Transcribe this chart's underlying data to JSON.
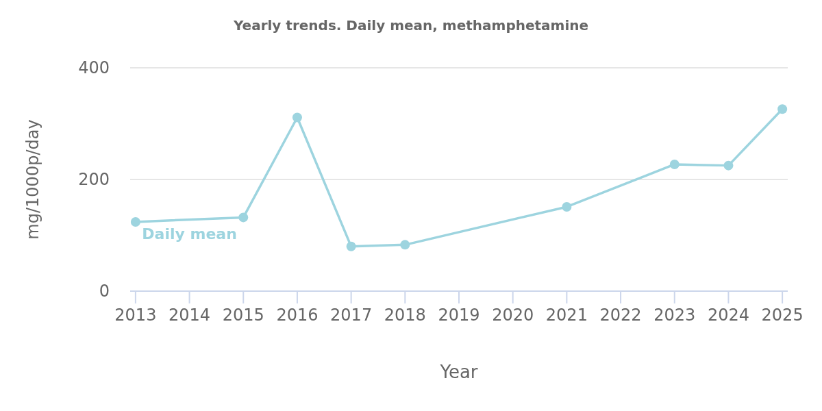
{
  "chart_data": {
    "type": "line",
    "title": "Yearly trends. Daily mean, methamphetamine",
    "xlabel": "Year",
    "ylabel": "mg/1000p/day",
    "x": [
      2013,
      2015,
      2016,
      2017,
      2018,
      2021,
      2023,
      2024,
      2025
    ],
    "series": [
      {
        "name": "Daily mean",
        "color": "#9dd4df",
        "values": [
          124,
          132,
          311,
          80,
          83,
          151,
          227,
          225,
          326
        ]
      }
    ],
    "xlim": [
      2012.9,
      2025.1
    ],
    "xticks": [
      2013,
      2014,
      2015,
      2016,
      2017,
      2018,
      2019,
      2020,
      2021,
      2022,
      2023,
      2024,
      2025
    ],
    "ylim": [
      0,
      400
    ],
    "yticks": [
      0,
      200,
      400
    ],
    "grid": "y",
    "marker": "circle",
    "line_style": "solid"
  }
}
